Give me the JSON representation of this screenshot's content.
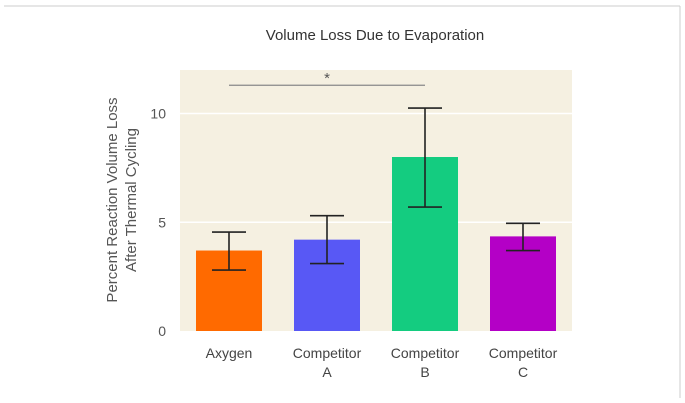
{
  "chart_data": {
    "type": "bar",
    "title": "Volume Loss Due to Evaporation",
    "ylabel_lines": [
      "Percent Reaction Volume Loss",
      "After Thermal Cycling"
    ],
    "xlabel": "",
    "ylim": [
      0,
      12
    ],
    "yticks": [
      0,
      5,
      10
    ],
    "categories": [
      [
        "Axygen"
      ],
      [
        "Competitor",
        "A"
      ],
      [
        "Competitor",
        "B"
      ],
      [
        "Competitor",
        "C"
      ]
    ],
    "values": [
      3.7,
      4.2,
      8.0,
      4.35
    ],
    "error_low": [
      2.8,
      3.1,
      5.7,
      3.7
    ],
    "error_high": [
      4.55,
      5.3,
      10.25,
      4.95
    ],
    "colors": [
      "#ff6a00",
      "#5858f5",
      "#14cc80",
      "#b400c6"
    ],
    "significance": {
      "from": 0,
      "to": 2,
      "level": 11.3,
      "label": "*"
    },
    "background": "#f5f0e1",
    "grid": true
  }
}
